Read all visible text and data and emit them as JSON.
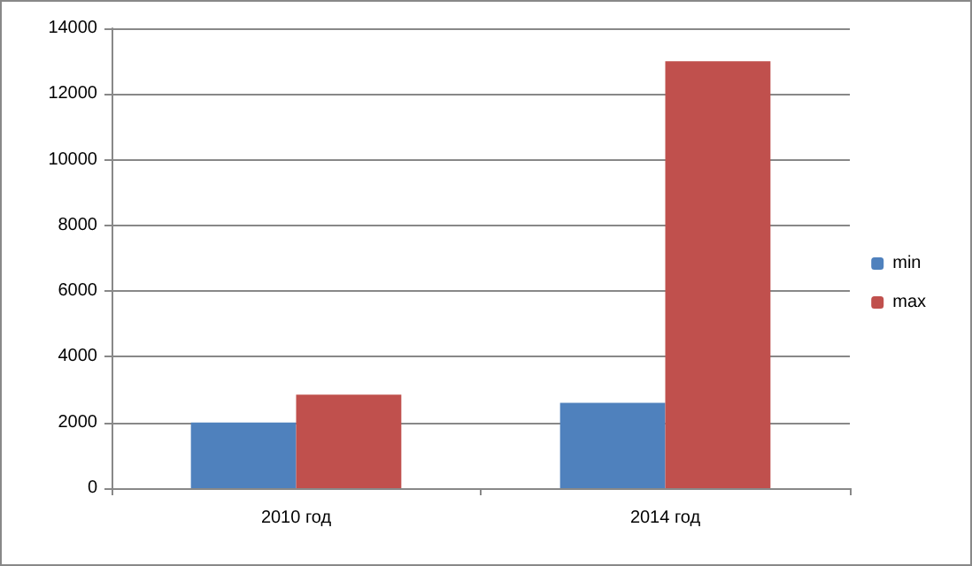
{
  "chart_data": {
    "type": "bar",
    "categories": [
      "2010 год",
      "2014 год"
    ],
    "series": [
      {
        "name": "min",
        "color": "#4f81bd",
        "values": [
          2000,
          2600
        ]
      },
      {
        "name": "max",
        "color": "#c0504d",
        "values": [
          2850,
          13000
        ]
      }
    ],
    "ylim": [
      0,
      14000
    ],
    "yticks": [
      0,
      2000,
      4000,
      6000,
      8000,
      10000,
      12000,
      14000
    ],
    "grid": "y",
    "legend": "right"
  }
}
